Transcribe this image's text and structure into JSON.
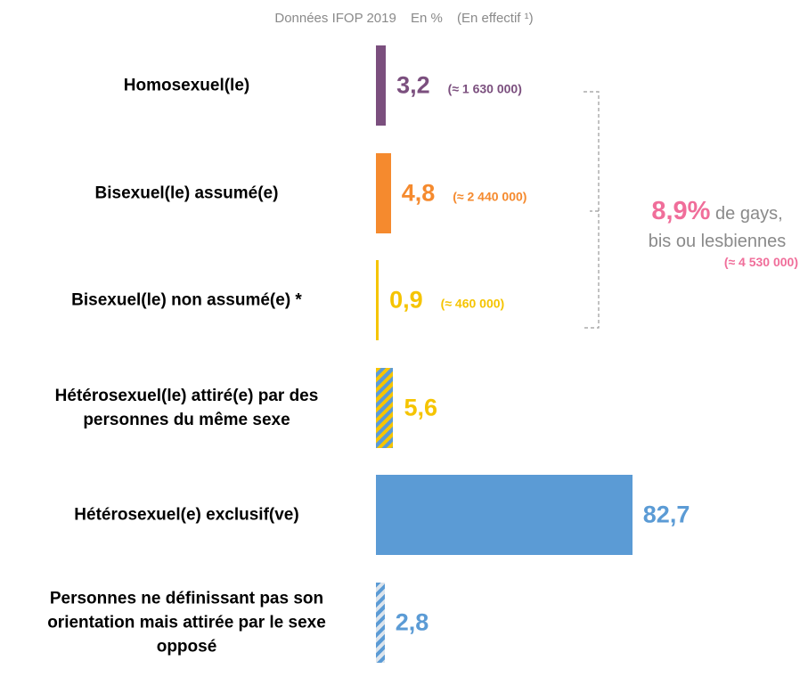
{
  "chart_data": {
    "type": "bar",
    "orientation": "horizontal",
    "subtitle": [
      "Données IFOP 2019",
      "En %",
      "(En effectif ¹)"
    ],
    "categories": [
      "Homosexuel(le)",
      "Bisexuel(le) assumé(e)",
      "Bisexuel(le) non assumé(e) *",
      "Hétérosexuel(le) attiré(e) par des\npersonnes du même sexe",
      "Hétérosexuel(e) exclusif(ve)",
      "Personnes ne définissant pas son\norientation mais attirée par le sexe\nopposé"
    ],
    "values": [
      3.2,
      4.8,
      0.9,
      5.6,
      82.7,
      2.8
    ],
    "value_labels": [
      "3,2",
      "4,8",
      "0,9",
      "5,6",
      "82,7",
      "2,8"
    ],
    "counts": [
      "(≈ 1 630 000)",
      "(≈ 2 440 000)",
      "(≈ 460 000)",
      null,
      null,
      null
    ],
    "colors": [
      "#7b4f7e",
      "#f58a2e",
      "#f5c400",
      "#f5c400",
      "#5b9bd5",
      "#5b9bd5"
    ],
    "hatch_colors": [
      null,
      null,
      null,
      "#5b9bd5",
      null,
      "#dce4ec"
    ],
    "label_colors": [
      "#7b4f7e",
      "#f58a2e",
      "#f5c400",
      "#f5c400",
      "#5b9bd5",
      "#5b9bd5"
    ],
    "xlim": [
      0,
      100
    ],
    "annotation": {
      "label": "8,9%",
      "text": "de gays,\nbis ou lesbiennes",
      "count": "(≈ 4 530 000)"
    }
  }
}
